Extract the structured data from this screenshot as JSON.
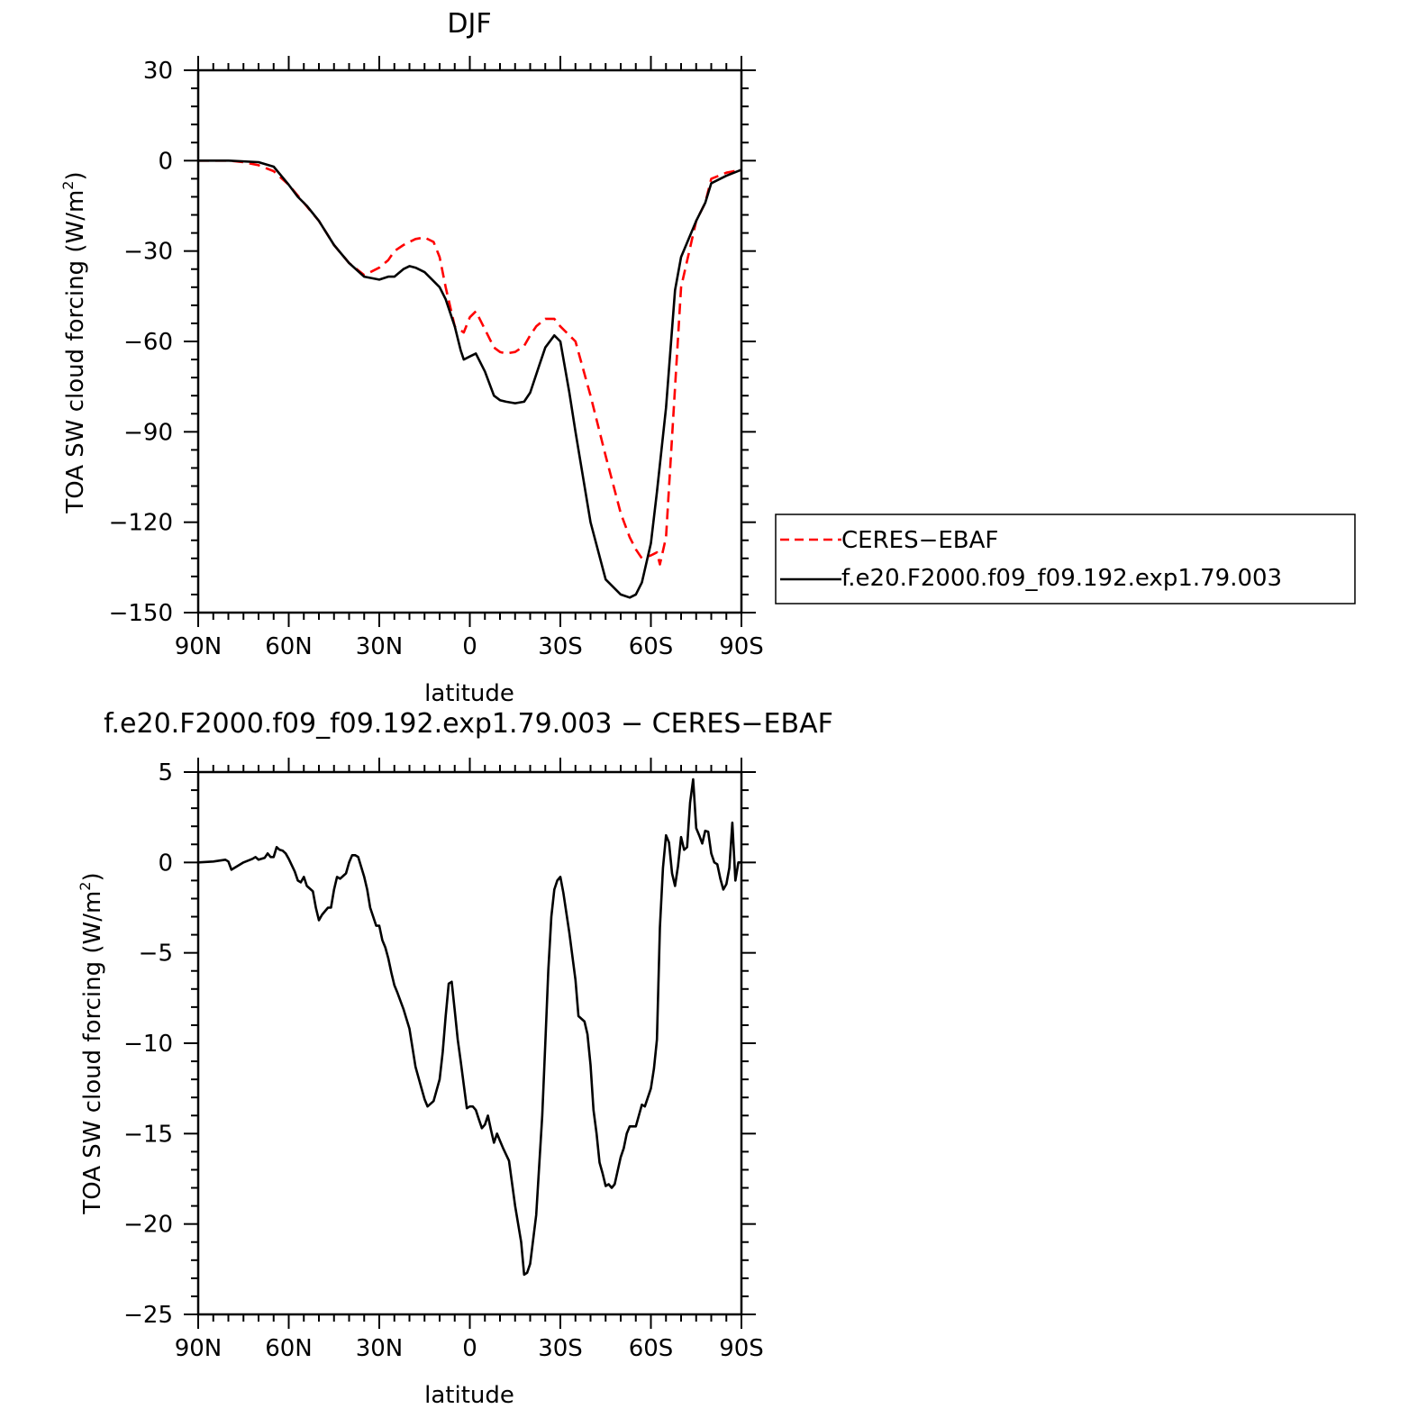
{
  "chart_data": [
    {
      "type": "line",
      "title": "DJF",
      "xlabel": "latitude",
      "ylabel": "TOA SW cloud forcing (W/m²)",
      "ylabel_main": "TOA SW cloud forcing (W/m",
      "ylabel_sup": "2",
      "ylabel_tail": ")",
      "xlim": [
        90,
        -90
      ],
      "ylim": [
        -150,
        30
      ],
      "x_ticks": [
        90,
        60,
        30,
        0,
        -30,
        -60,
        -90
      ],
      "x_tick_labels": [
        "90N",
        "60N",
        "30N",
        "0",
        "30S",
        "60S",
        "90S"
      ],
      "y_ticks": [
        30,
        0,
        -30,
        -60,
        -90,
        -120,
        -150
      ],
      "y_tick_labels": [
        "30",
        "0",
        "−30",
        "−60",
        "−90",
        "−120",
        "−150"
      ],
      "legend": {
        "position": "right",
        "entries": [
          "CERES−EBAF",
          "f.e20.F2000.f09_f09.192.exp1.79.003"
        ]
      },
      "series": [
        {
          "name": "CERES−EBAF",
          "color": "#ff0000",
          "dash": "dashed",
          "x": [
            90,
            85,
            80,
            75,
            70,
            65,
            60,
            55,
            50,
            45,
            40,
            35,
            30,
            27,
            25,
            22,
            20,
            18,
            15,
            12,
            10,
            8,
            5,
            2,
            0,
            -2,
            -5,
            -8,
            -10,
            -12,
            -15,
            -18,
            -20,
            -22,
            -25,
            -28,
            -30,
            -35,
            -40,
            -45,
            -50,
            -53,
            -55,
            -57,
            -60,
            -61,
            -62,
            -63,
            -65,
            -70,
            -75,
            -78,
            -80,
            -85,
            -90
          ],
          "y": [
            0,
            0,
            0,
            -0.5,
            -1.5,
            -3.5,
            -8,
            -14,
            -20,
            -28,
            -34,
            -38,
            -35.5,
            -33,
            -30,
            -28,
            -27,
            -26,
            -25.5,
            -27,
            -32,
            -42,
            -55,
            -57,
            -52,
            -50,
            -56,
            -62,
            -63.5,
            -64,
            -63.5,
            -61.5,
            -58,
            -55,
            -52.5,
            -52.5,
            -55,
            -60,
            -78,
            -98,
            -117,
            -125,
            -129,
            -132,
            -131,
            -130.5,
            -130,
            -134,
            -125,
            -42,
            -20,
            -14,
            -6,
            -4,
            -3
          ]
        },
        {
          "name": "f.e20.F2000.f09_f09.192.exp1.79.003",
          "color": "#000000",
          "dash": "solid",
          "x": [
            90,
            80,
            70,
            65,
            60,
            57,
            54,
            50,
            45,
            40,
            35,
            30,
            27,
            25,
            22,
            20,
            18,
            15,
            12,
            10,
            8,
            5,
            3,
            2,
            0,
            -2,
            -5,
            -8,
            -10,
            -12,
            -15,
            -18,
            -20,
            -23,
            -25,
            -28,
            -30,
            -33,
            -35,
            -40,
            -45,
            -50,
            -53,
            -55,
            -57,
            -60,
            -62,
            -65,
            -68,
            -70,
            -75,
            -78,
            -80,
            -85,
            -90
          ],
          "y": [
            0,
            0,
            -0.5,
            -2,
            -8,
            -12,
            -15,
            -20,
            -28,
            -34,
            -38.5,
            -39.5,
            -38.5,
            -38.5,
            -36,
            -35,
            -35.5,
            -37,
            -40,
            -42,
            -46,
            -55,
            -63,
            -66,
            -65,
            -64,
            -70,
            -78,
            -79.5,
            -80,
            -80.5,
            -80,
            -77,
            -68,
            -62,
            -58,
            -60,
            -77,
            -90,
            -120,
            -139,
            -144,
            -145,
            -144,
            -140,
            -127,
            -110,
            -82,
            -43,
            -32,
            -20,
            -14,
            -7.5,
            -5,
            -3
          ]
        }
      ]
    },
    {
      "type": "line",
      "title": "f.e20.F2000.f09_f09.192.exp1.79.003 − CERES−EBAF",
      "xlabel": "latitude",
      "ylabel": "TOA SW cloud forcing (W/m²)",
      "ylabel_main": "TOA SW cloud forcing (W/m",
      "ylabel_sup": "2",
      "ylabel_tail": ")",
      "xlim": [
        90,
        -90
      ],
      "ylim": [
        -25,
        5
      ],
      "x_ticks": [
        90,
        60,
        30,
        0,
        -30,
        -60,
        -90
      ],
      "x_tick_labels": [
        "90N",
        "60N",
        "30N",
        "0",
        "30S",
        "60S",
        "90S"
      ],
      "y_ticks": [
        5,
        0,
        -5,
        -10,
        -15,
        -20,
        -25
      ],
      "y_tick_labels": [
        "5",
        "0",
        "−5",
        "−10",
        "−15",
        "−20",
        "−25"
      ],
      "series": [
        {
          "name": "f.e20.F2000.f09_f09.192.exp1.79.003 − CERES−EBAF",
          "color": "#000000",
          "dash": "solid",
          "x": [
            90,
            85,
            81,
            80,
            79,
            75,
            72,
            71,
            70,
            68,
            67,
            66,
            65,
            64,
            63,
            62,
            61,
            60,
            58,
            57,
            56,
            55,
            54,
            52,
            51,
            50,
            49,
            48,
            47,
            46,
            45,
            44,
            43,
            41,
            40,
            39,
            38,
            37,
            35,
            34,
            33,
            31,
            30,
            29,
            28,
            27,
            26,
            25,
            24,
            22,
            20,
            18,
            16,
            15,
            14,
            12,
            10,
            9,
            8,
            7,
            6,
            5,
            4,
            3,
            2,
            1,
            0,
            -1,
            -2,
            -3,
            -4,
            -5,
            -6,
            -7,
            -8,
            -9,
            -10,
            -11,
            -13,
            -15,
            -17,
            -18,
            -19,
            -20,
            -22,
            -24,
            -25,
            -26,
            -27,
            -28,
            -29,
            -30,
            -31,
            -33,
            -35,
            -36,
            -38,
            -39,
            -40,
            -41,
            -42,
            -43,
            -44,
            -45,
            -46,
            -47,
            -48,
            -50,
            -51,
            -52,
            -53,
            -55,
            -57,
            -58,
            -60,
            -61,
            -62,
            -63,
            -64,
            -65,
            -66,
            -67,
            -68,
            -69,
            -70,
            -71,
            -72,
            -73,
            -74,
            -75,
            -76,
            -77,
            -78,
            -79,
            -80,
            -81,
            -82,
            -83,
            -84,
            -85,
            -86,
            -87,
            -88,
            -89,
            -90
          ],
          "y": [
            0,
            0.05,
            0.15,
            0.05,
            -0.4,
            0,
            0.2,
            0.3,
            0.15,
            0.25,
            0.5,
            0.3,
            0.3,
            0.85,
            0.7,
            0.65,
            0.5,
            0.2,
            -0.5,
            -1,
            -1.1,
            -0.8,
            -1.3,
            -1.6,
            -2.5,
            -3.2,
            -2.9,
            -2.7,
            -2.5,
            -2.5,
            -1.5,
            -0.8,
            -0.9,
            -0.6,
            0,
            0.4,
            0.4,
            0.3,
            -0.8,
            -1.5,
            -2.5,
            -3.5,
            -3.5,
            -4.3,
            -4.7,
            -5.3,
            -6.1,
            -6.8,
            -7.2,
            -8.1,
            -9.2,
            -11.3,
            -12.5,
            -13.1,
            -13.5,
            -13.2,
            -12,
            -10.5,
            -8.5,
            -6.7,
            -6.6,
            -8.2,
            -9.8,
            -11,
            -12.3,
            -13.6,
            -13.5,
            -13.5,
            -13.7,
            -14.2,
            -14.7,
            -14.5,
            -14,
            -14.8,
            -15.5,
            -15,
            -15.4,
            -15.8,
            -16.5,
            -19,
            -21,
            -22.8,
            -22.7,
            -22.2,
            -19.5,
            -14,
            -10,
            -6,
            -3,
            -1.5,
            -1,
            -0.8,
            -1.7,
            -3.9,
            -6.5,
            -8.5,
            -8.8,
            -9.5,
            -11.2,
            -13.7,
            -15,
            -16.6,
            -17.2,
            -17.9,
            -17.8,
            -18,
            -17.8,
            -16.3,
            -15.8,
            -15,
            -14.6,
            -14.6,
            -13.4,
            -13.5,
            -12.5,
            -11.4,
            -9.8,
            -3.6,
            -0.3,
            1.5,
            1.1,
            -0.6,
            -1.3,
            -0.2,
            1.4,
            0.7,
            0.85,
            3.3,
            4.6,
            1.9,
            1.5,
            1.05,
            1.75,
            1.7,
            0.5,
            0,
            -0.1,
            -0.9,
            -1.5,
            -1.2,
            -0.3,
            2.2,
            -1,
            0,
            0
          ]
        }
      ]
    }
  ]
}
